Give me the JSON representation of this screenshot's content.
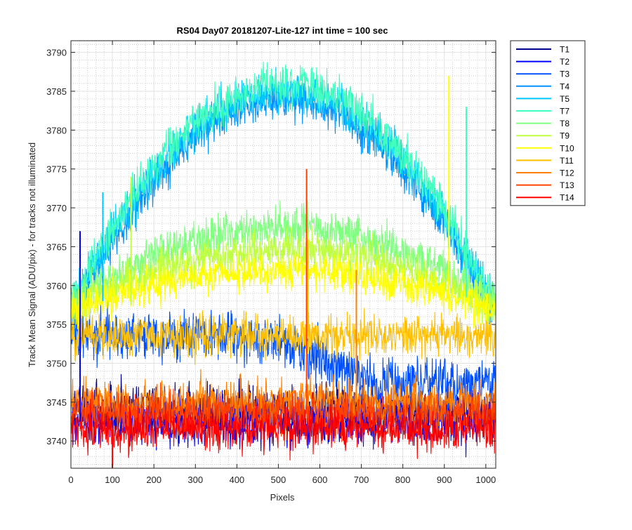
{
  "chart_data": {
    "type": "line",
    "title": "RS04 Day07 20181207-Lite-127 int time = 100 sec",
    "xlabel": "Pixels",
    "ylabel": "Track Mean Signal (ADU/pix) - for tracks not illuminated",
    "xlim": [
      0,
      1024
    ],
    "ylim": [
      3736.5,
      3791.5
    ],
    "xticks": [
      0,
      100,
      200,
      300,
      400,
      500,
      600,
      700,
      800,
      900,
      1000
    ],
    "yticks": [
      3740,
      3745,
      3750,
      3755,
      3760,
      3765,
      3770,
      3775,
      3780,
      3785,
      3790
    ],
    "grid": "major and minor",
    "legend_position": "outside top-right",
    "series": [
      {
        "name": "T1",
        "color": "#00008f",
        "shape": "flat",
        "base": 3744,
        "peak": 0,
        "noise": 1.6
      },
      {
        "name": "T2",
        "color": "#0000ff",
        "shape": "flat",
        "base": 3742.5,
        "peak": 0,
        "noise": 1.6
      },
      {
        "name": "T3",
        "color": "#0050ff",
        "shape": "flat",
        "base": 3753.5,
        "peak": 0,
        "noise": 1.6,
        "dip_start": 480,
        "dip_depth": 6
      },
      {
        "name": "T4",
        "color": "#0090ff",
        "shape": "dome",
        "base": 3757,
        "peak": 27,
        "noise": 1.4
      },
      {
        "name": "T5",
        "color": "#00c8ff",
        "shape": "dome",
        "base": 3758,
        "peak": 27,
        "noise": 1.4
      },
      {
        "name": "T7",
        "color": "#40ffbf",
        "shape": "dome",
        "base": 3758.5,
        "peak": 27.5,
        "noise": 1.4
      },
      {
        "name": "T8",
        "color": "#80ff80",
        "shape": "dome",
        "base": 3758,
        "peak": 9.5,
        "noise": 1.3
      },
      {
        "name": "T9",
        "color": "#bfff40",
        "shape": "dome",
        "base": 3757.5,
        "peak": 7,
        "noise": 1.3
      },
      {
        "name": "T10",
        "color": "#ffff00",
        "shape": "dome",
        "base": 3757,
        "peak": 5,
        "noise": 1.2
      },
      {
        "name": "T11",
        "color": "#ffbf00",
        "shape": "flat",
        "base": 3753.5,
        "peak": 0,
        "noise": 1.3
      },
      {
        "name": "T12",
        "color": "#ff8000",
        "shape": "flat",
        "base": 3745,
        "peak": 0,
        "noise": 1.4
      },
      {
        "name": "T13",
        "color": "#ff4000",
        "shape": "flat",
        "base": 3743.5,
        "peak": 0,
        "noise": 1.4
      },
      {
        "name": "T14",
        "color": "#ff0000",
        "shape": "flat",
        "base": 3741.5,
        "peak": 0,
        "noise": 1.4
      }
    ],
    "spikes": [
      {
        "series": "T13",
        "x": 568,
        "y": 3775
      },
      {
        "series": "T10",
        "x": 911,
        "y": 3787
      },
      {
        "series": "T7",
        "x": 953,
        "y": 3783
      },
      {
        "series": "T5",
        "x": 77,
        "y": 3772
      },
      {
        "series": "T9",
        "x": 145,
        "y": 3774
      },
      {
        "series": "T2",
        "x": 22,
        "y": 3767
      },
      {
        "series": "T12",
        "x": 688,
        "y": 3762
      },
      {
        "series": "T11",
        "x": 571,
        "y": 3766
      },
      {
        "series": "T14",
        "x": 100,
        "y": 3736.5
      }
    ]
  }
}
